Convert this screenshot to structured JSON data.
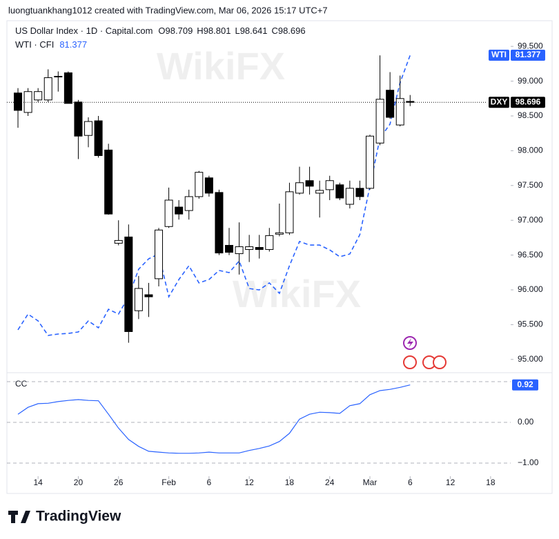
{
  "header": "luongtuankhang1012 created with TradingView.com, Mar 06, 2026 15:17 UTC+7",
  "footer": "TradingView",
  "watermark": "WikiFX",
  "chart_data": [
    {
      "type": "candlestick",
      "title": "US Dollar Index · 1D · Capital.com",
      "tag": "DXY",
      "legend_prefixes": [
        "O",
        "H",
        "L",
        "C"
      ],
      "xlim": [
        -1.1,
        49
      ],
      "xticks": [
        {
          "value": 2,
          "label": "14"
        },
        {
          "value": 6,
          "label": "20"
        },
        {
          "value": 10,
          "label": "26"
        },
        {
          "value": 15,
          "label": "Feb"
        },
        {
          "value": 19,
          "label": "6"
        },
        {
          "value": 23,
          "label": "12"
        },
        {
          "value": 27,
          "label": "18"
        },
        {
          "value": 31,
          "label": "24"
        },
        {
          "value": 35,
          "label": "Mar"
        },
        {
          "value": 39,
          "label": "6"
        },
        {
          "value": 43,
          "label": "12"
        },
        {
          "value": 47,
          "label": "18"
        }
      ],
      "ylim": [
        94.859,
        99.869
      ],
      "yticks": [
        {
          "value": 95,
          "label": "95.000"
        },
        {
          "value": 95.5,
          "label": "95.500"
        },
        {
          "value": 96,
          "label": "96.000"
        },
        {
          "value": 96.5,
          "label": "96.500"
        },
        {
          "value": 97,
          "label": "97.000"
        },
        {
          "value": 97.5,
          "label": "97.500"
        },
        {
          "value": 98,
          "label": "98.000"
        },
        {
          "value": 98.5,
          "label": "98.500"
        },
        {
          "value": 99,
          "label": "99.000"
        },
        {
          "value": 99.5,
          "label": "99.500"
        }
      ],
      "grid": false,
      "up_color": "#ffffff",
      "down_color": "#000000",
      "open": [
        98.83,
        98.55,
        98.73,
        98.73,
        99.06,
        99.12,
        98.7,
        98.22,
        98.43,
        98.01,
        96.67,
        96.76,
        95.7,
        95.93,
        96.16,
        96.91,
        97.19,
        97.14,
        97.34,
        97.61,
        97.4,
        96.64,
        96.52,
        96.58,
        96.61,
        96.58,
        96.8,
        96.82,
        97.39,
        97.57,
        97.39,
        97.44,
        97.51,
        97.23,
        97.46,
        97.46,
        98.11,
        98.87,
        98.37,
        98.709
      ],
      "high": [
        98.9,
        98.9,
        98.9,
        99.17,
        99.14,
        99.14,
        98.73,
        98.48,
        98.5,
        98.1,
        97.0,
        96.94,
        96.2,
        96.1,
        96.89,
        97.47,
        97.29,
        97.44,
        97.71,
        97.64,
        97.44,
        96.89,
        96.97,
        96.79,
        96.79,
        96.89,
        97.24,
        97.54,
        97.77,
        97.77,
        97.57,
        97.64,
        97.54,
        97.57,
        97.57,
        98.23,
        99.37,
        99.13,
        99.08,
        98.801
      ],
      "low": [
        98.33,
        98.5,
        98.7,
        98.7,
        98.85,
        98.68,
        97.88,
        98.05,
        97.9,
        97.08,
        96.64,
        95.24,
        95.58,
        95.61,
        96.05,
        96.89,
        97.01,
        97.01,
        97.31,
        97.34,
        96.5,
        96.5,
        96.22,
        96.4,
        96.45,
        96.55,
        96.77,
        96.79,
        97.37,
        97.37,
        97.04,
        97.29,
        97.29,
        97.17,
        97.29,
        97.44,
        98.08,
        98.46,
        98.35,
        98.641
      ],
      "close": [
        98.58,
        98.85,
        98.85,
        99.05,
        99.07,
        98.68,
        98.21,
        98.42,
        97.93,
        97.09,
        96.71,
        95.4,
        96.02,
        95.9,
        96.86,
        97.29,
        97.09,
        97.34,
        97.69,
        97.39,
        96.53,
        96.54,
        96.62,
        96.62,
        96.58,
        96.78,
        96.82,
        97.41,
        97.54,
        97.49,
        97.43,
        97.57,
        97.32,
        97.46,
        97.34,
        98.21,
        98.74,
        98.48,
        98.75,
        98.696
      ],
      "y2lim": [
        56.67,
        84.09
      ],
      "series": [
        {
          "name": "WTI · CFI",
          "tag": "WTI",
          "color": "#2962ff",
          "axis": "y2",
          "dashed": true,
          "values": [
            59.77,
            61.01,
            60.47,
            59.33,
            59.44,
            59.49,
            59.6,
            60.47,
            59.93,
            61.39,
            61.01,
            62.37,
            64.54,
            65.36,
            65.74,
            62.37,
            63.73,
            64.81,
            63.46,
            63.73,
            64.44,
            64.27,
            65.19,
            63.02,
            62.91,
            63.46,
            62.64,
            64.81,
            66.72,
            66.44,
            66.44,
            66.06,
            65.52,
            65.74,
            67.26,
            71.06,
            74.86,
            75.95,
            79.21,
            81.377
          ]
        }
      ]
    },
    {
      "type": "line",
      "title": "CC",
      "ylim": [
        -1.322,
        1.136
      ],
      "yticks": [
        {
          "value": 0,
          "label": "0.00"
        },
        {
          "value": -1,
          "label": "−1.00"
        }
      ],
      "bands": [
        1
      ],
      "series": [
        {
          "color": "#2962ff",
          "values": [
            0.2,
            0.37,
            0.46,
            0.47,
            0.51,
            0.54,
            0.56,
            0.54,
            0.53,
            0.2,
            -0.14,
            -0.42,
            -0.59,
            -0.71,
            -0.73,
            -0.75,
            -0.76,
            -0.76,
            -0.75,
            -0.73,
            -0.75,
            -0.75,
            -0.75,
            -0.69,
            -0.64,
            -0.58,
            -0.47,
            -0.27,
            0.08,
            0.2,
            0.25,
            0.24,
            0.22,
            0.41,
            0.46,
            0.68,
            0.78,
            0.81,
            0.86,
            0.92
          ]
        }
      ]
    }
  ]
}
